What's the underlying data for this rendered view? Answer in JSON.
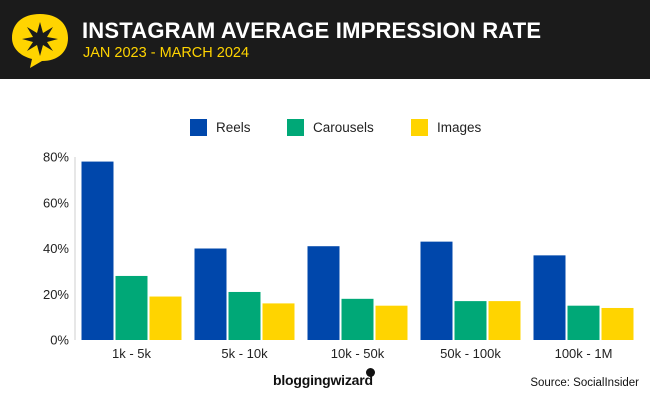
{
  "header": {
    "title": "INSTAGRAM AVERAGE IMPRESSION RATE",
    "subtitle": "JAN 2023 - MARCH 2024",
    "logo_icon": "star-burst-speech-bubble-icon",
    "background_color": "#1b1b1b",
    "accent_color": "#ffd400"
  },
  "chart_data": {
    "type": "bar",
    "categories": [
      "1k - 5k",
      "5k - 10k",
      "10k - 50k",
      "50k - 100k",
      "100k - 1M"
    ],
    "series": [
      {
        "name": "Reels",
        "color": "#0047ab",
        "values": [
          78,
          40,
          41,
          43,
          37
        ]
      },
      {
        "name": "Carousels",
        "color": "#00a877",
        "values": [
          28,
          21,
          18,
          17,
          15
        ]
      },
      {
        "name": "Images",
        "color": "#ffd400",
        "values": [
          19,
          16,
          15,
          17,
          14
        ]
      }
    ],
    "ylim": [
      0,
      80
    ],
    "yticks": [
      0,
      20,
      40,
      60,
      80
    ],
    "ytick_labels": [
      "0%",
      "20%",
      "40%",
      "60%",
      "80%"
    ],
    "grid": false,
    "legend_position": "top-center"
  },
  "footer": {
    "brand": "bloggingwizard",
    "source": "Source: SocialInsider"
  }
}
